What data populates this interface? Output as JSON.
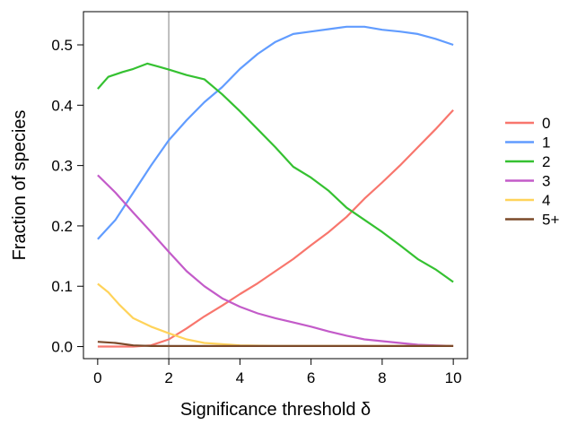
{
  "chart_data": {
    "type": "line",
    "xlabel": "Significance threshold δ",
    "ylabel": "Fraction of species",
    "xlim": [
      -0.4,
      10.4
    ],
    "ylim": [
      -0.02,
      0.555
    ],
    "xticks": [
      0,
      2,
      4,
      6,
      8,
      10
    ],
    "yticks": [
      0.0,
      0.1,
      0.2,
      0.3,
      0.4,
      0.5
    ],
    "ytick_labels": [
      "0.0",
      "0.1",
      "0.2",
      "0.3",
      "0.4",
      "0.5"
    ],
    "vline": {
      "x": 2,
      "color": "#bdbdbd"
    },
    "grid": false,
    "legend_position": "right",
    "series": [
      {
        "name": "0",
        "color": "#f8766d",
        "x": [
          0,
          1,
          1.5,
          2,
          2.5,
          3,
          3.5,
          4,
          4.5,
          5,
          5.5,
          6,
          6.5,
          7,
          7.5,
          8,
          8.5,
          9,
          9.5,
          10
        ],
        "y": [
          0,
          0,
          0.002,
          0.012,
          0.03,
          0.05,
          0.068,
          0.087,
          0.105,
          0.125,
          0.145,
          0.168,
          0.19,
          0.215,
          0.245,
          0.272,
          0.3,
          0.33,
          0.36,
          0.392
        ]
      },
      {
        "name": "1",
        "color": "#619cff",
        "x": [
          0,
          0.5,
          1,
          1.5,
          2,
          2.5,
          3,
          3.5,
          4,
          4.5,
          5,
          5.5,
          6,
          6.5,
          7,
          7.5,
          8,
          8.5,
          9,
          9.5,
          10
        ],
        "y": [
          0.178,
          0.21,
          0.255,
          0.3,
          0.342,
          0.375,
          0.405,
          0.43,
          0.46,
          0.485,
          0.505,
          0.518,
          0.522,
          0.526,
          0.53,
          0.53,
          0.525,
          0.522,
          0.518,
          0.51,
          0.5
        ]
      },
      {
        "name": "2",
        "color": "#35c131",
        "x": [
          0,
          0.3,
          0.7,
          1,
          1.4,
          1.7,
          2,
          2.5,
          3,
          3.5,
          4,
          4.5,
          5,
          5.5,
          6,
          6.5,
          7,
          7.5,
          8,
          8.5,
          9,
          9.5,
          10
        ],
        "y": [
          0.427,
          0.447,
          0.455,
          0.46,
          0.469,
          0.464,
          0.459,
          0.45,
          0.443,
          0.418,
          0.39,
          0.36,
          0.33,
          0.298,
          0.28,
          0.258,
          0.23,
          0.21,
          0.19,
          0.168,
          0.145,
          0.128,
          0.107
        ]
      },
      {
        "name": "3",
        "color": "#c35bc9",
        "x": [
          0,
          0.5,
          1,
          1.5,
          2,
          2.5,
          3,
          3.5,
          4,
          4.5,
          5,
          5.5,
          6,
          6.5,
          7,
          7.5,
          8,
          8.5,
          9,
          9.5,
          10
        ],
        "y": [
          0.284,
          0.255,
          0.222,
          0.19,
          0.157,
          0.125,
          0.1,
          0.08,
          0.066,
          0.055,
          0.047,
          0.04,
          0.033,
          0.025,
          0.018,
          0.012,
          0.009,
          0.006,
          0.003,
          0.002,
          0.001
        ]
      },
      {
        "name": "4",
        "color": "#ffd35a",
        "x": [
          0,
          0.3,
          0.6,
          1,
          1.5,
          2,
          2.5,
          3,
          3.5,
          4,
          5,
          6,
          7,
          8,
          9,
          10
        ],
        "y": [
          0.104,
          0.09,
          0.07,
          0.047,
          0.033,
          0.022,
          0.012,
          0.006,
          0.004,
          0.002,
          0.001,
          0.001,
          0.001,
          0.001,
          0.001,
          0.001
        ]
      },
      {
        "name": "5+",
        "color": "#7b4a2a",
        "x": [
          0,
          0.5,
          1,
          1.5,
          2,
          4,
          6,
          8,
          10
        ],
        "y": [
          0.008,
          0.006,
          0.002,
          0.001,
          0.001,
          0.001,
          0.001,
          0.001,
          0.001
        ]
      }
    ]
  }
}
